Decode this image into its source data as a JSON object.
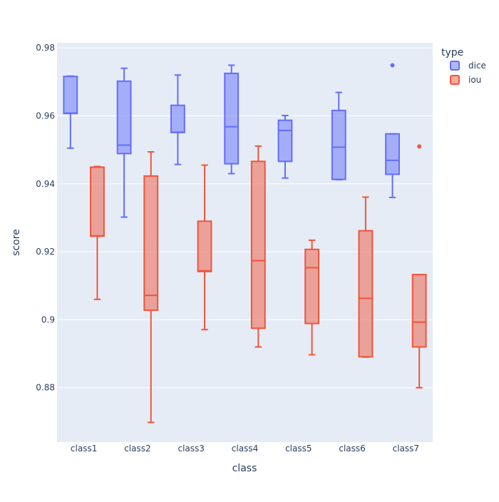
{
  "chart_data": {
    "type": "box",
    "xlabel": "class",
    "ylabel": "score",
    "categories": [
      "class1",
      "class2",
      "class3",
      "class4",
      "class5",
      "class6",
      "class7"
    ],
    "ylim": [
      0.864,
      0.9815
    ],
    "yticks": [
      0.88,
      0.9,
      0.92,
      0.94,
      0.96,
      0.98
    ],
    "ytick_labels": [
      "0.88",
      "0.9",
      "0.92",
      "0.94",
      "0.96",
      "0.98"
    ],
    "grid": true,
    "legend": {
      "title": "type",
      "placement": "top-right"
    },
    "series": [
      {
        "name": "dice",
        "color": "#636efa",
        "fill": "rgba(99,110,250,0.5)",
        "boxes": [
          {
            "category": "class1",
            "min": 0.9505,
            "q1": 0.9607,
            "median": 0.9608,
            "q3": 0.9716,
            "max": 0.9717,
            "outliers": []
          },
          {
            "category": "class2",
            "min": 0.9302,
            "q1": 0.9489,
            "median": 0.9514,
            "q3": 0.9702,
            "max": 0.974,
            "outliers": []
          },
          {
            "category": "class3",
            "min": 0.9457,
            "q1": 0.9551,
            "median": 0.9552,
            "q3": 0.9631,
            "max": 0.972,
            "outliers": []
          },
          {
            "category": "class4",
            "min": 0.943,
            "q1": 0.9459,
            "median": 0.9568,
            "q3": 0.9725,
            "max": 0.9749,
            "outliers": []
          },
          {
            "category": "class5",
            "min": 0.9417,
            "q1": 0.9466,
            "median": 0.9557,
            "q3": 0.9587,
            "max": 0.9601,
            "outliers": []
          },
          {
            "category": "class6",
            "min": 0.9412,
            "q1": 0.9413,
            "median": 0.9508,
            "q3": 0.9616,
            "max": 0.9669,
            "outliers": []
          },
          {
            "category": "class7",
            "min": 0.936,
            "q1": 0.9428,
            "median": 0.9469,
            "q3": 0.9547,
            "max": 0.9547,
            "outliers": [
              0.9749
            ]
          }
        ]
      },
      {
        "name": "iou",
        "color": "#ef553b",
        "fill": "rgba(239,85,59,0.5)",
        "boxes": [
          {
            "category": "class1",
            "min": 0.906,
            "q1": 0.9246,
            "median": 0.9247,
            "q3": 0.9449,
            "max": 0.9451,
            "outliers": []
          },
          {
            "category": "class2",
            "min": 0.8698,
            "q1": 0.9028,
            "median": 0.9072,
            "q3": 0.9423,
            "max": 0.9494,
            "outliers": []
          },
          {
            "category": "class3",
            "min": 0.8971,
            "q1": 0.9142,
            "median": 0.9144,
            "q3": 0.929,
            "max": 0.9455,
            "outliers": []
          },
          {
            "category": "class4",
            "min": 0.892,
            "q1": 0.8975,
            "median": 0.9174,
            "q3": 0.9466,
            "max": 0.9511,
            "outliers": []
          },
          {
            "category": "class5",
            "min": 0.8897,
            "q1": 0.8989,
            "median": 0.9153,
            "q3": 0.9207,
            "max": 0.9234,
            "outliers": []
          },
          {
            "category": "class6",
            "min": 0.889,
            "q1": 0.8891,
            "median": 0.9063,
            "q3": 0.9262,
            "max": 0.9361,
            "outliers": []
          },
          {
            "category": "class7",
            "min": 0.88,
            "q1": 0.892,
            "median": 0.8993,
            "q3": 0.9133,
            "max": 0.9133,
            "outliers": [
              0.951
            ]
          }
        ]
      }
    ]
  }
}
